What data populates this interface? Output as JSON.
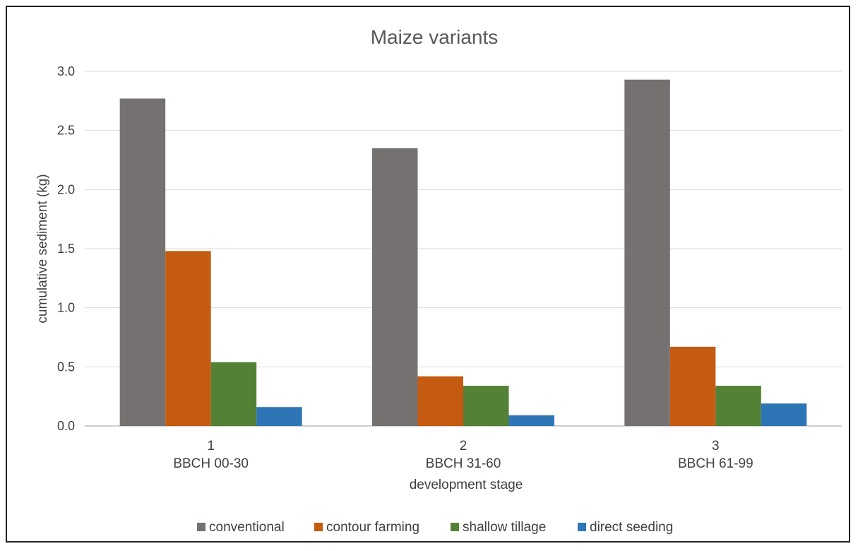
{
  "chart_data": {
    "type": "bar",
    "title": "Maize variants",
    "xlabel": "development stage",
    "ylabel": "cumulative sediment (kg)",
    "ylim": [
      0,
      3.0
    ],
    "yticks": [
      "0.0",
      "0.5",
      "1.0",
      "1.5",
      "2.0",
      "2.5",
      "3.0"
    ],
    "categories": [
      {
        "number": "1",
        "label": "BBCH 00-30"
      },
      {
        "number": "2",
        "label": "BBCH 31-60"
      },
      {
        "number": "3",
        "label": "BBCH 61-99"
      }
    ],
    "series": [
      {
        "name": "conventional",
        "color": "#767171",
        "values": [
          2.77,
          2.35,
          2.93
        ]
      },
      {
        "name": "contour farming",
        "color": "#c55a11",
        "values": [
          1.48,
          0.42,
          0.67
        ]
      },
      {
        "name": "shallow tillage",
        "color": "#538135",
        "values": [
          0.54,
          0.34,
          0.34
        ]
      },
      {
        "name": "direct seeding",
        "color": "#2e75b6",
        "values": [
          0.16,
          0.09,
          0.19
        ]
      }
    ],
    "grid": true,
    "legend_position": "bottom"
  }
}
